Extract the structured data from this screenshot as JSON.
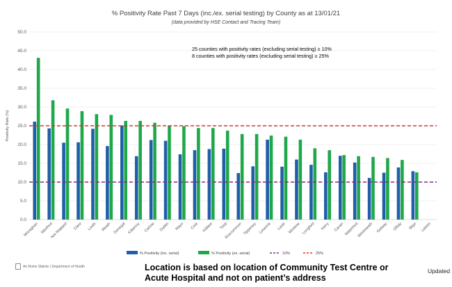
{
  "chart_data": {
    "type": "bar",
    "title": "% Positivity Rate Past 7 Days (inc./ex. serial testing) by County as at 13/01/21",
    "subtitle": "(data provided by HSE Contact and Tracing Team)",
    "xlabel": "",
    "ylabel": "Positivity Rate (%)",
    "ylim": [
      0,
      50
    ],
    "yticks": [
      "0.0",
      "5.0",
      "10.0",
      "15.0",
      "20.0",
      "25.0",
      "30.0",
      "35.0",
      "40.0",
      "45.0",
      "50.0"
    ],
    "ytick_values": [
      0,
      5,
      10,
      15,
      20,
      25,
      30,
      35,
      40,
      45,
      50
    ],
    "categories": [
      "Monaghan",
      "Wexford",
      "Not Mapped",
      "Clare",
      "Louth",
      "Meath",
      "Donegal",
      "Kilkenny",
      "Carlow",
      "Dublin",
      "Mayo",
      "Cork",
      "Kildare",
      "Total",
      "Roscommon",
      "Tipperary",
      "Limerick",
      "Laois",
      "Wicklow",
      "Longford",
      "Kerry",
      "Cavan",
      "Waterford",
      "Westmeath",
      "Galway",
      "Offaly",
      "Sligo",
      "Leitrim"
    ],
    "series": [
      {
        "name": "% Positivity (inc. serial)",
        "color": "#1f5fa8",
        "values": [
          26.1,
          24.3,
          20.5,
          20.6,
          24.2,
          19.6,
          25.1,
          16.9,
          21.2,
          21.0,
          17.4,
          18.5,
          18.8,
          18.9,
          12.4,
          14.2,
          21.3,
          14.1,
          16.0,
          14.6,
          12.6,
          17.0,
          15.2,
          11.1,
          12.5,
          13.9,
          12.9,
          0
        ]
      },
      {
        "name": "% Positivity (ex. serial)",
        "color": "#1fa84a",
        "values": [
          43.1,
          31.8,
          29.6,
          28.9,
          28.1,
          27.9,
          26.3,
          26.3,
          25.8,
          25.0,
          24.9,
          24.4,
          24.4,
          23.7,
          22.8,
          22.8,
          22.4,
          22.1,
          21.3,
          19.0,
          18.5,
          17.2,
          16.9,
          16.7,
          16.4,
          15.9,
          12.6,
          0
        ]
      }
    ],
    "reference_lines": [
      {
        "name": "10%",
        "value": 10,
        "color": "#7b2d8e"
      },
      {
        "name": "25%",
        "value": 25,
        "color": "#d9342b"
      }
    ],
    "annotations": [
      "25 counties with positivity rates (excluding serial testing) ≥ 10%",
      "8 counties with positivity rates (excluding serial testing) ≥ 25%"
    ],
    "grid": true,
    "legend_position": "bottom"
  },
  "footer": {
    "source": "An Roinn Sláinte | Department of Health",
    "note": "Location is based on location of Community Test Centre or Acute Hospital and not on patient’s address",
    "updated": "Updated a"
  }
}
